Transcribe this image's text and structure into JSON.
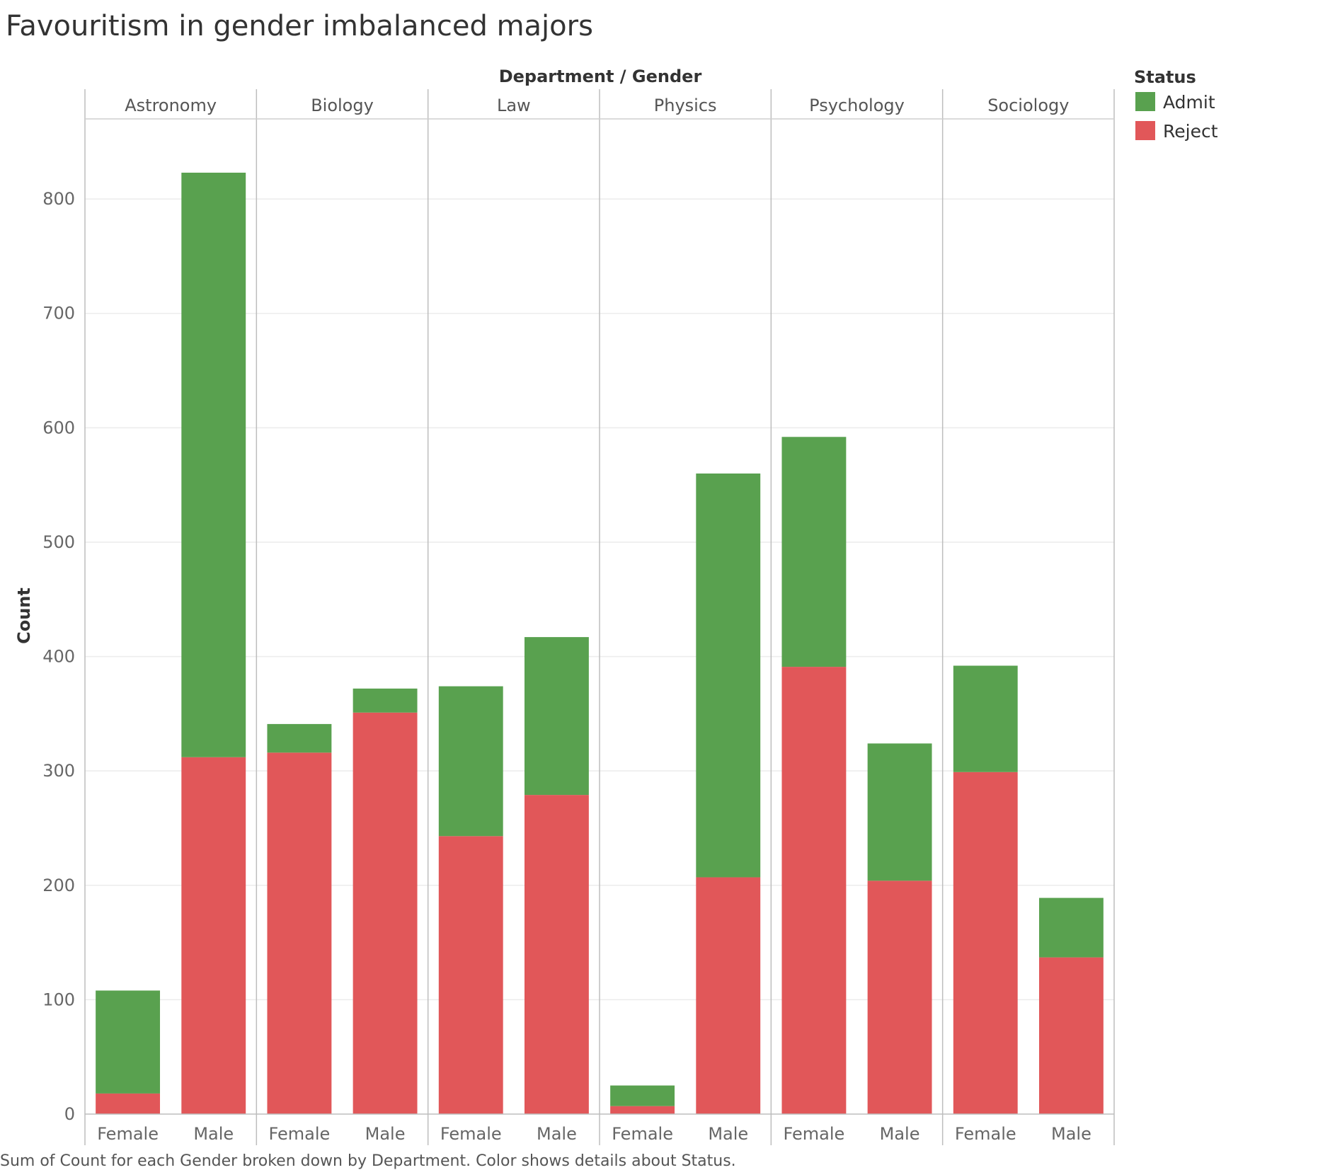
{
  "chart_data": {
    "type": "bar",
    "stacked": true,
    "title": "Favouritism in gender imbalanced majors",
    "caption": "Sum of Count for each Gender broken down by Department.  Color shows details about Status.",
    "column_header_title": "Department / Gender",
    "ylabel": "Count",
    "ylim": [
      0,
      870
    ],
    "yticks": [
      0,
      100,
      200,
      300,
      400,
      500,
      600,
      700,
      800
    ],
    "grid": true,
    "departments": [
      "Astronomy",
      "Biology",
      "Law",
      "Physics",
      "Psychology",
      "Sociology"
    ],
    "genders": [
      "Female",
      "Male"
    ],
    "legend": {
      "title": "Status",
      "placement": "top-right",
      "entries": [
        {
          "name": "Admit",
          "color": "#59a14f"
        },
        {
          "name": "Reject",
          "color": "#e15759"
        }
      ]
    },
    "series": [
      {
        "name": "Reject",
        "color": "#e15759",
        "values": [
          18,
          312,
          316,
          351,
          243,
          279,
          7,
          207,
          391,
          204,
          299,
          137
        ]
      },
      {
        "name": "Admit",
        "color": "#59a14f",
        "values": [
          90,
          511,
          25,
          21,
          131,
          138,
          18,
          353,
          201,
          120,
          93,
          52
        ]
      }
    ]
  }
}
